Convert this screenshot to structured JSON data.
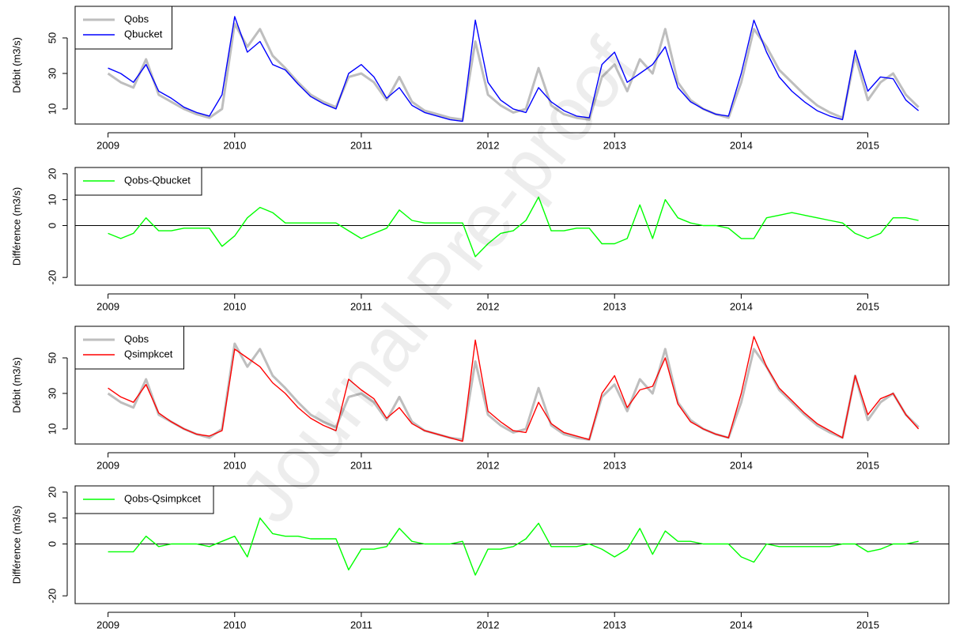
{
  "watermark": "Journal Pre-proof",
  "chart_data": [
    {
      "type": "line",
      "ylabel": "Débit (m3/s)",
      "legend": "topleft",
      "grid": false,
      "x": [
        2009.0,
        2009.1,
        2009.2,
        2009.3,
        2009.4,
        2009.5,
        2009.6,
        2009.7,
        2009.8,
        2009.9,
        2010.0,
        2010.1,
        2010.2,
        2010.3,
        2010.4,
        2010.5,
        2010.6,
        2010.7,
        2010.8,
        2010.9,
        2011.0,
        2011.1,
        2011.2,
        2011.3,
        2011.4,
        2011.5,
        2011.6,
        2011.7,
        2011.8,
        2011.9,
        2012.0,
        2012.1,
        2012.2,
        2012.3,
        2012.4,
        2012.5,
        2012.6,
        2012.7,
        2012.8,
        2012.9,
        2013.0,
        2013.1,
        2013.2,
        2013.3,
        2013.4,
        2013.5,
        2013.6,
        2013.7,
        2013.8,
        2013.9,
        2014.0,
        2014.1,
        2014.2,
        2014.3,
        2014.4,
        2014.5,
        2014.6,
        2014.7,
        2014.8,
        2014.9,
        2015.0,
        2015.1,
        2015.2,
        2015.3,
        2015.4
      ],
      "series": [
        {
          "name": "Qobs",
          "color": "#bebebe",
          "values": [
            30,
            25,
            22,
            38,
            18,
            14,
            10,
            7,
            5,
            10,
            58,
            45,
            55,
            40,
            33,
            25,
            18,
            14,
            11,
            28,
            30,
            25,
            15,
            28,
            14,
            9,
            7,
            5,
            4,
            48,
            18,
            12,
            8,
            10,
            33,
            12,
            7,
            5,
            4,
            28,
            35,
            20,
            38,
            30,
            55,
            25,
            15,
            10,
            7,
            5,
            25,
            55,
            45,
            32,
            25,
            18,
            12,
            8,
            5,
            40,
            15,
            25,
            30,
            18,
            11
          ]
        },
        {
          "name": "Qbucket",
          "color": "#0000ff",
          "values": [
            33,
            30,
            25,
            35,
            20,
            16,
            11,
            8,
            6,
            18,
            62,
            42,
            48,
            35,
            32,
            24,
            17,
            13,
            10,
            30,
            35,
            28,
            16,
            22,
            12,
            8,
            6,
            4,
            3,
            60,
            25,
            15,
            10,
            8,
            22,
            14,
            9,
            6,
            5,
            35,
            42,
            25,
            30,
            35,
            45,
            22,
            14,
            10,
            7,
            6,
            30,
            60,
            42,
            28,
            20,
            14,
            9,
            6,
            4,
            43,
            20,
            28,
            27,
            15,
            9
          ]
        }
      ],
      "xlim": [
        2008.74,
        2015.64
      ],
      "xticks": [
        2009,
        2010,
        2011,
        2012,
        2013,
        2014,
        2015
      ],
      "ylim": [
        1.5,
        67.8
      ],
      "yticks": [
        10,
        30,
        50
      ]
    },
    {
      "type": "line",
      "ylabel": "Différence (m3/s)",
      "legend": "topleft",
      "grid": false,
      "hline": 0,
      "x": [
        2009.0,
        2009.1,
        2009.2,
        2009.3,
        2009.4,
        2009.5,
        2009.6,
        2009.7,
        2009.8,
        2009.9,
        2010.0,
        2010.1,
        2010.2,
        2010.3,
        2010.4,
        2010.5,
        2010.6,
        2010.7,
        2010.8,
        2010.9,
        2011.0,
        2011.1,
        2011.2,
        2011.3,
        2011.4,
        2011.5,
        2011.6,
        2011.7,
        2011.8,
        2011.9,
        2012.0,
        2012.1,
        2012.2,
        2012.3,
        2012.4,
        2012.5,
        2012.6,
        2012.7,
        2012.8,
        2012.9,
        2013.0,
        2013.1,
        2013.2,
        2013.3,
        2013.4,
        2013.5,
        2013.6,
        2013.7,
        2013.8,
        2013.9,
        2014.0,
        2014.1,
        2014.2,
        2014.3,
        2014.4,
        2014.5,
        2014.6,
        2014.7,
        2014.8,
        2014.9,
        2015.0,
        2015.1,
        2015.2,
        2015.3,
        2015.4
      ],
      "series": [
        {
          "name": "Qobs-Qbucket",
          "color": "#00ff00",
          "values": [
            -3,
            -5,
            -3,
            3,
            -2,
            -2,
            -1,
            -1,
            -1,
            -8,
            -4,
            3,
            7,
            5,
            1,
            1,
            1,
            1,
            1,
            -2,
            -5,
            -3,
            -1,
            6,
            2,
            1,
            1,
            1,
            1,
            -12,
            -7,
            -3,
            -2,
            2,
            11,
            -2,
            -2,
            -1,
            -1,
            -7,
            -7,
            -5,
            8,
            -5,
            10,
            3,
            1,
            0,
            0,
            -1,
            -5,
            -5,
            3,
            4,
            5,
            4,
            3,
            2,
            1,
            -3,
            -5,
            -3,
            3,
            3,
            2
          ]
        }
      ],
      "xlim": [
        2008.74,
        2015.64
      ],
      "xticks": [
        2009,
        2010,
        2011,
        2012,
        2013,
        2014,
        2015
      ],
      "ylim": [
        -23,
        22.4
      ],
      "yticks": [
        -20,
        0,
        10,
        20
      ]
    },
    {
      "type": "line",
      "ylabel": "Débit (m3/s)",
      "legend": "topleft",
      "grid": false,
      "x": [
        2009.0,
        2009.1,
        2009.2,
        2009.3,
        2009.4,
        2009.5,
        2009.6,
        2009.7,
        2009.8,
        2009.9,
        2010.0,
        2010.1,
        2010.2,
        2010.3,
        2010.4,
        2010.5,
        2010.6,
        2010.7,
        2010.8,
        2010.9,
        2011.0,
        2011.1,
        2011.2,
        2011.3,
        2011.4,
        2011.5,
        2011.6,
        2011.7,
        2011.8,
        2011.9,
        2012.0,
        2012.1,
        2012.2,
        2012.3,
        2012.4,
        2012.5,
        2012.6,
        2012.7,
        2012.8,
        2012.9,
        2013.0,
        2013.1,
        2013.2,
        2013.3,
        2013.4,
        2013.5,
        2013.6,
        2013.7,
        2013.8,
        2013.9,
        2014.0,
        2014.1,
        2014.2,
        2014.3,
        2014.4,
        2014.5,
        2014.6,
        2014.7,
        2014.8,
        2014.9,
        2015.0,
        2015.1,
        2015.2,
        2015.3,
        2015.4
      ],
      "series": [
        {
          "name": "Qobs",
          "color": "#bebebe",
          "values": [
            30,
            25,
            22,
            38,
            18,
            14,
            10,
            7,
            5,
            10,
            58,
            45,
            55,
            40,
            33,
            25,
            18,
            14,
            11,
            28,
            30,
            25,
            15,
            28,
            14,
            9,
            7,
            5,
            4,
            48,
            18,
            12,
            8,
            10,
            33,
            12,
            7,
            5,
            4,
            28,
            35,
            20,
            38,
            30,
            55,
            25,
            15,
            10,
            7,
            5,
            25,
            55,
            45,
            32,
            25,
            18,
            12,
            8,
            5,
            40,
            15,
            25,
            30,
            18,
            11
          ]
        },
        {
          "name": "Qsimpkcet",
          "color": "#ff0000",
          "values": [
            33,
            28,
            25,
            35,
            19,
            14,
            10,
            7,
            6,
            9,
            55,
            50,
            45,
            36,
            30,
            22,
            16,
            12,
            9,
            38,
            32,
            27,
            16,
            22,
            13,
            9,
            7,
            5,
            3,
            60,
            20,
            14,
            9,
            8,
            25,
            13,
            8,
            6,
            4,
            30,
            40,
            22,
            32,
            34,
            50,
            24,
            14,
            10,
            7,
            5,
            30,
            62,
            45,
            33,
            26,
            19,
            13,
            9,
            5,
            40,
            18,
            27,
            30,
            18,
            10
          ]
        }
      ],
      "xlim": [
        2008.74,
        2015.64
      ],
      "xticks": [
        2009,
        2010,
        2011,
        2012,
        2013,
        2014,
        2015
      ],
      "ylim": [
        1.5,
        67.8
      ],
      "yticks": [
        10,
        30,
        50
      ]
    },
    {
      "type": "line",
      "ylabel": "Différence (m3/s)",
      "legend": "topleft",
      "grid": false,
      "hline": 0,
      "x": [
        2009.0,
        2009.1,
        2009.2,
        2009.3,
        2009.4,
        2009.5,
        2009.6,
        2009.7,
        2009.8,
        2009.9,
        2010.0,
        2010.1,
        2010.2,
        2010.3,
        2010.4,
        2010.5,
        2010.6,
        2010.7,
        2010.8,
        2010.9,
        2011.0,
        2011.1,
        2011.2,
        2011.3,
        2011.4,
        2011.5,
        2011.6,
        2011.7,
        2011.8,
        2011.9,
        2012.0,
        2012.1,
        2012.2,
        2012.3,
        2012.4,
        2012.5,
        2012.6,
        2012.7,
        2012.8,
        2012.9,
        2013.0,
        2013.1,
        2013.2,
        2013.3,
        2013.4,
        2013.5,
        2013.6,
        2013.7,
        2013.8,
        2013.9,
        2014.0,
        2014.1,
        2014.2,
        2014.3,
        2014.4,
        2014.5,
        2014.6,
        2014.7,
        2014.8,
        2014.9,
        2015.0,
        2015.1,
        2015.2,
        2015.3,
        2015.4
      ],
      "series": [
        {
          "name": "Qobs-Qsimpkcet",
          "color": "#00ff00",
          "values": [
            -3,
            -3,
            -3,
            3,
            -1,
            0,
            0,
            0,
            -1,
            1,
            3,
            -5,
            10,
            4,
            3,
            3,
            2,
            2,
            2,
            -10,
            -2,
            -2,
            -1,
            6,
            1,
            0,
            0,
            0,
            1,
            -12,
            -2,
            -2,
            -1,
            2,
            8,
            -1,
            -1,
            -1,
            0,
            -2,
            -5,
            -2,
            6,
            -4,
            5,
            1,
            1,
            0,
            0,
            0,
            -5,
            -7,
            0,
            -1,
            -1,
            -1,
            -1,
            -1,
            0,
            0,
            -3,
            -2,
            0,
            0,
            1
          ]
        }
      ],
      "xlim": [
        2008.74,
        2015.64
      ],
      "xticks": [
        2009,
        2010,
        2011,
        2012,
        2013,
        2014,
        2015
      ],
      "ylim": [
        -23,
        22.4
      ],
      "yticks": [
        -20,
        0,
        10,
        20
      ]
    }
  ]
}
